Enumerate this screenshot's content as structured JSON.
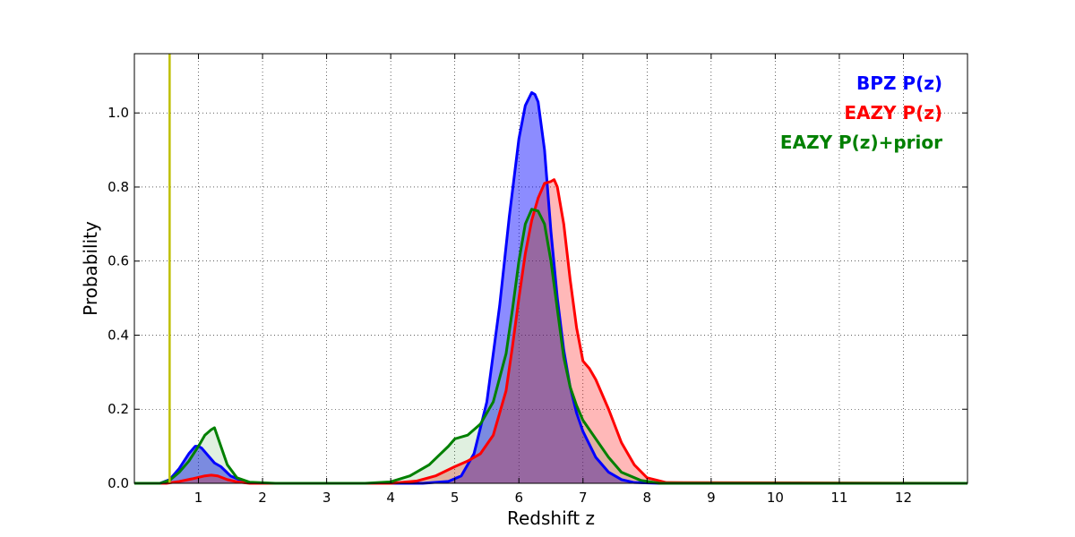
{
  "chart_data": {
    "type": "area",
    "title": "",
    "xlabel": "Redshift z",
    "ylabel": "Probability",
    "xlim": [
      0,
      13
    ],
    "ylim": [
      0,
      1.16
    ],
    "grid": true,
    "grid_style": "dotted",
    "legend_placement": "top-right",
    "x_ticks": [
      1,
      2,
      3,
      4,
      5,
      6,
      7,
      8,
      9,
      10,
      11,
      12
    ],
    "x_tick_labels": [
      "1",
      "2",
      "3",
      "4",
      "5",
      "6",
      "7",
      "8",
      "9",
      "10",
      "11",
      "12"
    ],
    "y_ticks": [
      0.0,
      0.2,
      0.4,
      0.6,
      0.8,
      1.0
    ],
    "y_tick_labels": [
      "0.0",
      "0.2",
      "0.4",
      "0.6",
      "0.8",
      "1.0"
    ],
    "vline": {
      "x": 0.55,
      "color": "#bfbf00"
    },
    "series": [
      {
        "name": "BPZ P(z)",
        "color": "#0000ff",
        "fill_opacity": 0.45,
        "x": [
          0,
          0.4,
          0.55,
          0.7,
          0.85,
          0.95,
          1.0,
          1.05,
          1.15,
          1.25,
          1.35,
          1.5,
          1.7,
          1.9,
          2.2,
          4.5,
          4.9,
          5.1,
          5.3,
          5.5,
          5.7,
          5.85,
          6.0,
          6.1,
          6.2,
          6.25,
          6.3,
          6.4,
          6.5,
          6.6,
          6.7,
          6.8,
          6.9,
          7.0,
          7.2,
          7.4,
          7.6,
          7.8,
          8.2,
          13
        ],
        "y": [
          0,
          0,
          0.01,
          0.04,
          0.08,
          0.1,
          0.1,
          0.095,
          0.075,
          0.055,
          0.045,
          0.02,
          0.005,
          0,
          0,
          0,
          0.005,
          0.02,
          0.08,
          0.22,
          0.48,
          0.72,
          0.93,
          1.02,
          1.055,
          1.05,
          1.03,
          0.9,
          0.68,
          0.5,
          0.36,
          0.26,
          0.19,
          0.14,
          0.07,
          0.03,
          0.01,
          0.002,
          0,
          0
        ]
      },
      {
        "name": "EAZY P(z)",
        "color": "#ff0000",
        "fill_opacity": 0.28,
        "x": [
          0,
          0.5,
          0.7,
          0.9,
          1.1,
          1.2,
          1.3,
          1.45,
          1.6,
          1.8,
          2.2,
          4.0,
          4.4,
          4.7,
          5.0,
          5.2,
          5.4,
          5.6,
          5.8,
          5.9,
          6.0,
          6.1,
          6.2,
          6.3,
          6.4,
          6.5,
          6.55,
          6.6,
          6.7,
          6.8,
          6.9,
          7.0,
          7.1,
          7.2,
          7.4,
          7.6,
          7.8,
          8.0,
          8.3,
          13
        ],
        "y": [
          0,
          0,
          0.005,
          0.012,
          0.02,
          0.022,
          0.02,
          0.01,
          0.004,
          0,
          0,
          0,
          0.006,
          0.02,
          0.045,
          0.06,
          0.08,
          0.13,
          0.25,
          0.37,
          0.5,
          0.62,
          0.71,
          0.77,
          0.81,
          0.815,
          0.82,
          0.8,
          0.7,
          0.55,
          0.42,
          0.33,
          0.31,
          0.28,
          0.2,
          0.11,
          0.05,
          0.015,
          0.002,
          0
        ]
      },
      {
        "name": "EAZY P(z)+prior",
        "color": "#008000",
        "fill_opacity": 0.12,
        "x": [
          0,
          0.4,
          0.55,
          0.7,
          0.85,
          1.0,
          1.1,
          1.2,
          1.25,
          1.35,
          1.45,
          1.6,
          1.8,
          2.2,
          3.6,
          4.0,
          4.3,
          4.6,
          4.9,
          5.0,
          5.2,
          5.4,
          5.6,
          5.8,
          5.9,
          6.0,
          6.1,
          6.2,
          6.3,
          6.4,
          6.5,
          6.6,
          6.7,
          6.8,
          6.9,
          7.0,
          7.2,
          7.4,
          7.6,
          7.9,
          8.2,
          13
        ],
        "y": [
          0,
          0,
          0.008,
          0.03,
          0.06,
          0.1,
          0.13,
          0.145,
          0.15,
          0.1,
          0.05,
          0.015,
          0.003,
          0,
          0,
          0.004,
          0.02,
          0.05,
          0.1,
          0.12,
          0.13,
          0.16,
          0.22,
          0.35,
          0.47,
          0.6,
          0.7,
          0.74,
          0.735,
          0.7,
          0.6,
          0.47,
          0.34,
          0.26,
          0.21,
          0.17,
          0.12,
          0.07,
          0.03,
          0.008,
          0,
          0
        ]
      }
    ]
  }
}
